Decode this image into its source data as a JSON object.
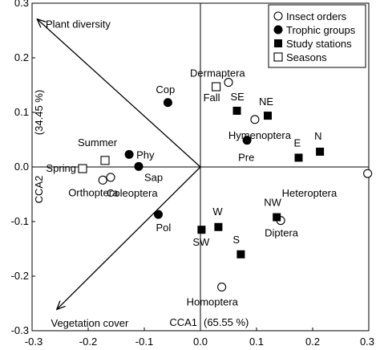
{
  "chart_data": {
    "type": "scatter",
    "title": "",
    "xlabel": "CCA1",
    "xlabel_pct": "(65.55 %)",
    "ylabel": "CCA2",
    "ylabel_pct": "(34.45 %)",
    "xlim": [
      -0.3,
      0.3
    ],
    "ylim": [
      -0.3,
      0.3
    ],
    "xticks": [
      -0.3,
      -0.2,
      -0.1,
      0.0,
      0.1,
      0.2,
      0.3
    ],
    "yticks": [
      -0.3,
      -0.2,
      -0.1,
      0.0,
      0.1,
      0.2,
      0.3
    ],
    "xtick_labels": [
      "-0.3",
      "-0.2",
      "-0.1",
      "0.0",
      "0.1",
      "0.2",
      "0.3"
    ],
    "ytick_labels": [
      "-0.3",
      "-0.2",
      "-0.1",
      "0.0",
      "0.1",
      "0.2",
      "0.3"
    ],
    "grid": false,
    "legend_position": "top-right",
    "series": [
      {
        "name": "Insect orders",
        "marker": "open-circle",
        "points": [
          {
            "label": "Dermaptera",
            "x": 0.05,
            "y": 0.155
          },
          {
            "label": "Hymenoptera",
            "x": 0.097,
            "y": 0.087
          },
          {
            "label": "Heteroptera",
            "x": 0.298,
            "y": -0.012
          },
          {
            "label": "Diptera",
            "x": 0.143,
            "y": -0.098
          },
          {
            "label": "Homoptera",
            "x": 0.038,
            "y": -0.22
          },
          {
            "label": "Orthoptera",
            "x": -0.174,
            "y": -0.024
          },
          {
            "label": "Coleoptera",
            "x": -0.16,
            "y": -0.019
          }
        ]
      },
      {
        "name": "Trophic groups",
        "marker": "filled-circle",
        "points": [
          {
            "label": "Cop",
            "x": -0.058,
            "y": 0.118
          },
          {
            "label": "Phy",
            "x": -0.127,
            "y": 0.023
          },
          {
            "label": "Sap",
            "x": -0.11,
            "y": 0.001
          },
          {
            "label": "Pre",
            "x": 0.083,
            "y": 0.049
          },
          {
            "label": "Pol",
            "x": -0.075,
            "y": -0.087
          }
        ]
      },
      {
        "name": "Study stations",
        "marker": "filled-square",
        "points": [
          {
            "label": "SE",
            "x": 0.065,
            "y": 0.103
          },
          {
            "label": "NE",
            "x": 0.12,
            "y": 0.094
          },
          {
            "label": "N",
            "x": 0.213,
            "y": 0.028
          },
          {
            "label": "E",
            "x": 0.175,
            "y": 0.017
          },
          {
            "label": "NW",
            "x": 0.136,
            "y": -0.092
          },
          {
            "label": "W",
            "x": 0.032,
            "y": -0.11
          },
          {
            "label": "SW",
            "x": 0.002,
            "y": -0.115
          },
          {
            "label": "S",
            "x": 0.072,
            "y": -0.16
          }
        ]
      },
      {
        "name": "Seasons",
        "marker": "open-square",
        "points": [
          {
            "label": "Fall",
            "x": 0.028,
            "y": 0.147
          },
          {
            "label": "Summer",
            "x": -0.17,
            "y": 0.012
          },
          {
            "label": "Spring",
            "x": -0.21,
            "y": -0.003
          }
        ]
      }
    ],
    "vectors": [
      {
        "label": "Plant diversity",
        "x": -0.29,
        "y": 0.27
      },
      {
        "label": "Vegetation cover",
        "x": -0.255,
        "y": -0.26
      }
    ]
  }
}
